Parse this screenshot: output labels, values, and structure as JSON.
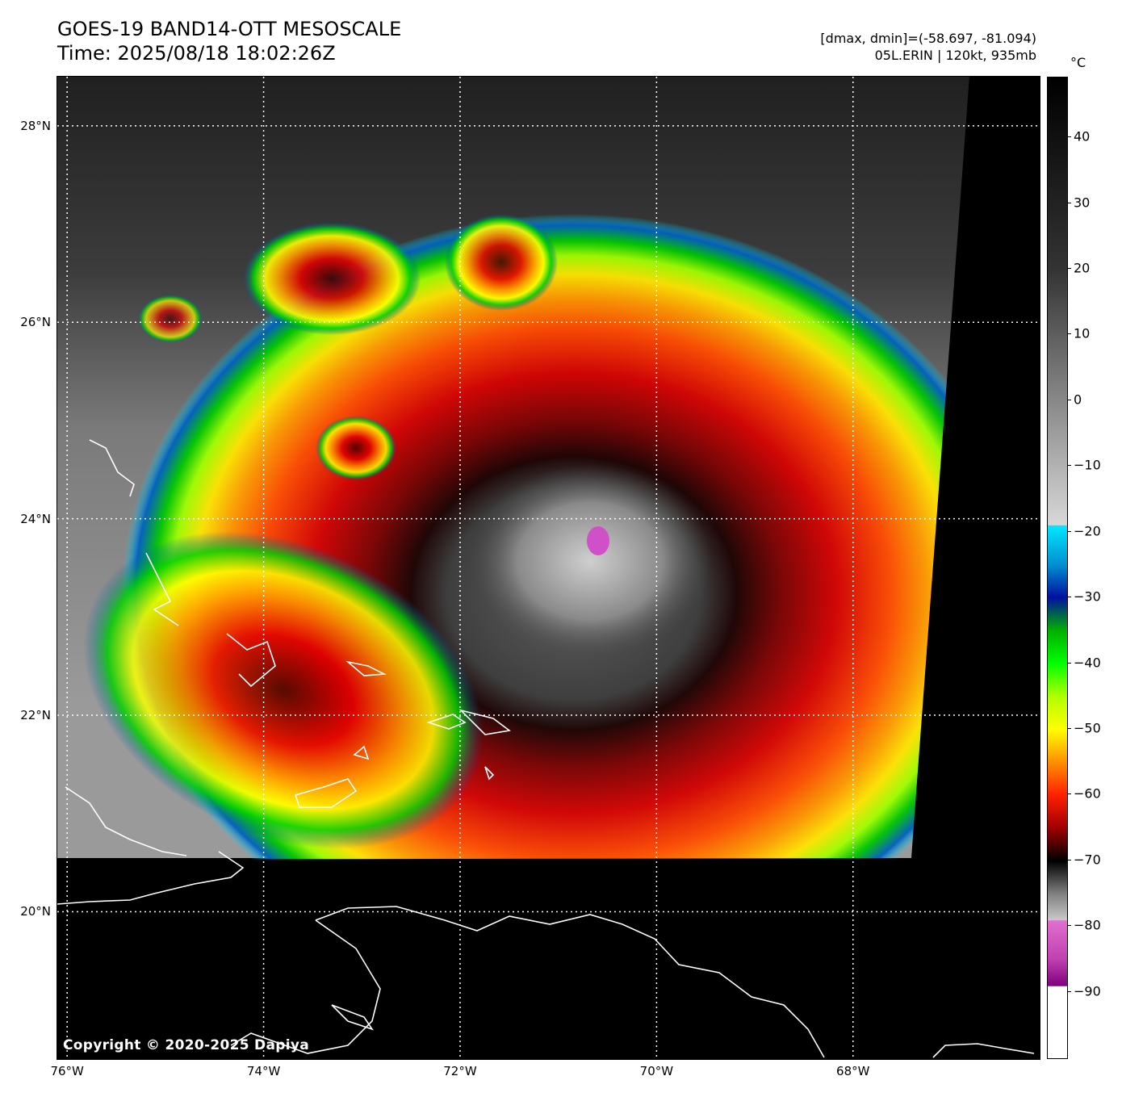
{
  "header": {
    "title_line1": "GOES-19 BAND14-OTT MESOSCALE",
    "title_line2": "Time: 2025/08/18 18:02:26Z",
    "info_line1": "[dmax, dmin]=(-58.697, -81.094)",
    "info_line2": "05L.ERIN | 120kt, 935mb"
  },
  "map": {
    "lat_labels": [
      "28°N",
      "26°N",
      "24°N",
      "22°N",
      "20°N"
    ],
    "lon_labels": [
      "76°W",
      "74°W",
      "72°W",
      "70°W",
      "68°W"
    ],
    "lat_values": [
      28,
      26,
      24,
      22,
      20
    ],
    "lon_values": [
      -76,
      -74,
      -72,
      -70,
      -68
    ],
    "lon_range": [
      -76.1,
      -66.1
    ],
    "lat_range": [
      18.5,
      28.5
    ],
    "gridlines": true,
    "storm_center": {
      "lon": -70.6,
      "lat": 23.8
    },
    "copyright": "Copyright © 2020-2025 Dapiya"
  },
  "colorbar": {
    "unit": "°C",
    "range": [
      -100,
      49
    ],
    "tick_values": [
      40,
      30,
      20,
      10,
      0,
      -10,
      -20,
      -30,
      -40,
      -50,
      -60,
      -70,
      -80,
      -90
    ],
    "tick_labels": [
      "40",
      "30",
      "20",
      "10",
      "0",
      "−10",
      "−20",
      "−30",
      "−40",
      "−50",
      "−60",
      "−70",
      "−80",
      "−90"
    ]
  }
}
